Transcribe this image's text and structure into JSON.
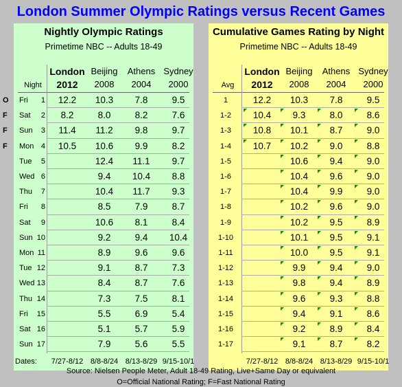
{
  "title": "London Summer Olympic Ratings versus Recent Games",
  "left": {
    "title": "Nightly Olympic Ratings",
    "subtitle": "Primetime NBC -- Adults 18-49",
    "header_label": "Night",
    "dates_label": "Dates:",
    "columns": [
      {
        "top": "London",
        "bottom": "2012",
        "bold": true,
        "dates": "7/27-8/12"
      },
      {
        "top": "Beijing",
        "bottom": "2008",
        "bold": false,
        "dates": "8/8-8/24"
      },
      {
        "top": "Athens",
        "bottom": "2004",
        "bold": false,
        "dates": "8/13-8/29"
      },
      {
        "top": "Sydney",
        "bottom": "2000",
        "bold": false,
        "dates": "9/15-10/1"
      }
    ],
    "rows": [
      {
        "flag": "O",
        "day": "Fri",
        "n": "1",
        "v": [
          "12.2",
          "10.3",
          "7.8",
          "9.5"
        ]
      },
      {
        "flag": "F",
        "day": "Sat",
        "n": "2",
        "v": [
          "8.2",
          "8.0",
          "8.2",
          "7.6"
        ]
      },
      {
        "flag": "F",
        "day": "Sun",
        "n": "3",
        "v": [
          "11.4",
          "11.2",
          "9.8",
          "9.7"
        ]
      },
      {
        "flag": "F",
        "day": "Mon",
        "n": "4",
        "v": [
          "10.5",
          "10.6",
          "9.9",
          "8.2"
        ]
      },
      {
        "flag": "",
        "day": "Tue",
        "n": "5",
        "v": [
          "",
          "12.4",
          "11.1",
          "9.7"
        ]
      },
      {
        "flag": "",
        "day": "Wed",
        "n": "6",
        "v": [
          "",
          "9.4",
          "10.4",
          "8.8"
        ]
      },
      {
        "flag": "",
        "day": "Thu",
        "n": "7",
        "v": [
          "",
          "10.4",
          "11.7",
          "9.3"
        ]
      },
      {
        "flag": "",
        "day": "Fri",
        "n": "8",
        "v": [
          "",
          "8.5",
          "7.9",
          "8.7"
        ]
      },
      {
        "flag": "",
        "day": "Sat",
        "n": "9",
        "v": [
          "",
          "10.6",
          "8.1",
          "8.4"
        ]
      },
      {
        "flag": "",
        "day": "Sun",
        "n": "10",
        "v": [
          "",
          "9.2",
          "9.4",
          "10.4"
        ]
      },
      {
        "flag": "",
        "day": "Mon",
        "n": "11",
        "v": [
          "",
          "8.9",
          "9.6",
          "9.6"
        ]
      },
      {
        "flag": "",
        "day": "Tue",
        "n": "12",
        "v": [
          "",
          "9.1",
          "8.7",
          "7.3"
        ]
      },
      {
        "flag": "",
        "day": "Wed",
        "n": "13",
        "v": [
          "",
          "8.4",
          "8.7",
          "7.6"
        ]
      },
      {
        "flag": "",
        "day": "Thu",
        "n": "14",
        "v": [
          "",
          "7.3",
          "7.5",
          "8.1"
        ]
      },
      {
        "flag": "",
        "day": "Fri",
        "n": "15",
        "v": [
          "",
          "5.5",
          "6.9",
          "5.4"
        ]
      },
      {
        "flag": "",
        "day": "Sat",
        "n": "16",
        "v": [
          "",
          "5.1",
          "5.7",
          "5.9"
        ]
      },
      {
        "flag": "",
        "day": "Sun",
        "n": "17",
        "v": [
          "",
          "7.9",
          "5.6",
          "5.5"
        ]
      }
    ]
  },
  "right": {
    "title": "Cumulative Games Rating by Night",
    "subtitle": "Primetime NBC -- Adults 18-49",
    "header_label": "Avg",
    "columns": [
      {
        "top": "London",
        "bottom": "2012",
        "bold": true,
        "dates": "7/27-8/12"
      },
      {
        "top": "Beijing",
        "bottom": "2008",
        "bold": false,
        "dates": "8/8-8/24"
      },
      {
        "top": "Athens",
        "bottom": "2004",
        "bold": false,
        "dates": "8/13-8/29"
      },
      {
        "top": "Sydney",
        "bottom": "2000",
        "bold": false,
        "dates": "9/15-10/1"
      }
    ],
    "rows": [
      {
        "n": "1",
        "v": [
          "12.2",
          "10.3",
          "7.8",
          "9.5"
        ]
      },
      {
        "n": "1-2",
        "v": [
          "10.4",
          "9.3",
          "8.0",
          "8.6"
        ]
      },
      {
        "n": "1-3",
        "v": [
          "10.8",
          "10.1",
          "8.7",
          "9.0"
        ]
      },
      {
        "n": "1-4",
        "v": [
          "10.7",
          "10.2",
          "9.0",
          "8.8"
        ]
      },
      {
        "n": "1-5",
        "v": [
          "",
          "10.6",
          "9.4",
          "9.0"
        ]
      },
      {
        "n": "1-6",
        "v": [
          "",
          "10.4",
          "9.6",
          "9.0"
        ]
      },
      {
        "n": "1-7",
        "v": [
          "",
          "10.4",
          "9.9",
          "9.0"
        ]
      },
      {
        "n": "1-8",
        "v": [
          "",
          "10.2",
          "9.6",
          "9.0"
        ]
      },
      {
        "n": "1-9",
        "v": [
          "",
          "10.2",
          "9.5",
          "8.9"
        ]
      },
      {
        "n": "1-10",
        "v": [
          "",
          "10.1",
          "9.5",
          "9.1"
        ]
      },
      {
        "n": "1-11",
        "v": [
          "",
          "10.0",
          "9.5",
          "9.1"
        ]
      },
      {
        "n": "1-12",
        "v": [
          "",
          "9.9",
          "9.4",
          "9.0"
        ]
      },
      {
        "n": "1-13",
        "v": [
          "",
          "9.8",
          "9.4",
          "8.9"
        ]
      },
      {
        "n": "1-14",
        "v": [
          "",
          "9.6",
          "9.3",
          "8.8"
        ]
      },
      {
        "n": "1-15",
        "v": [
          "",
          "9.4",
          "9.1",
          "8.6"
        ]
      },
      {
        "n": "1-16",
        "v": [
          "",
          "9.2",
          "8.9",
          "8.4"
        ]
      },
      {
        "n": "1-17",
        "v": [
          "",
          "9.1",
          "8.7",
          "8.2"
        ]
      }
    ]
  },
  "footer": {
    "source": "Source: Nielsen People Meter, Adult 18-49 Rating, Live+Same Day or equivalent",
    "legend": "O=Official National Rating; F=Fast National Rating"
  },
  "colors": {
    "title": "#0000ff",
    "left_bg": "#ccffcc",
    "right_bg": "#ffff99",
    "page_bg": "#c0c0c0"
  }
}
